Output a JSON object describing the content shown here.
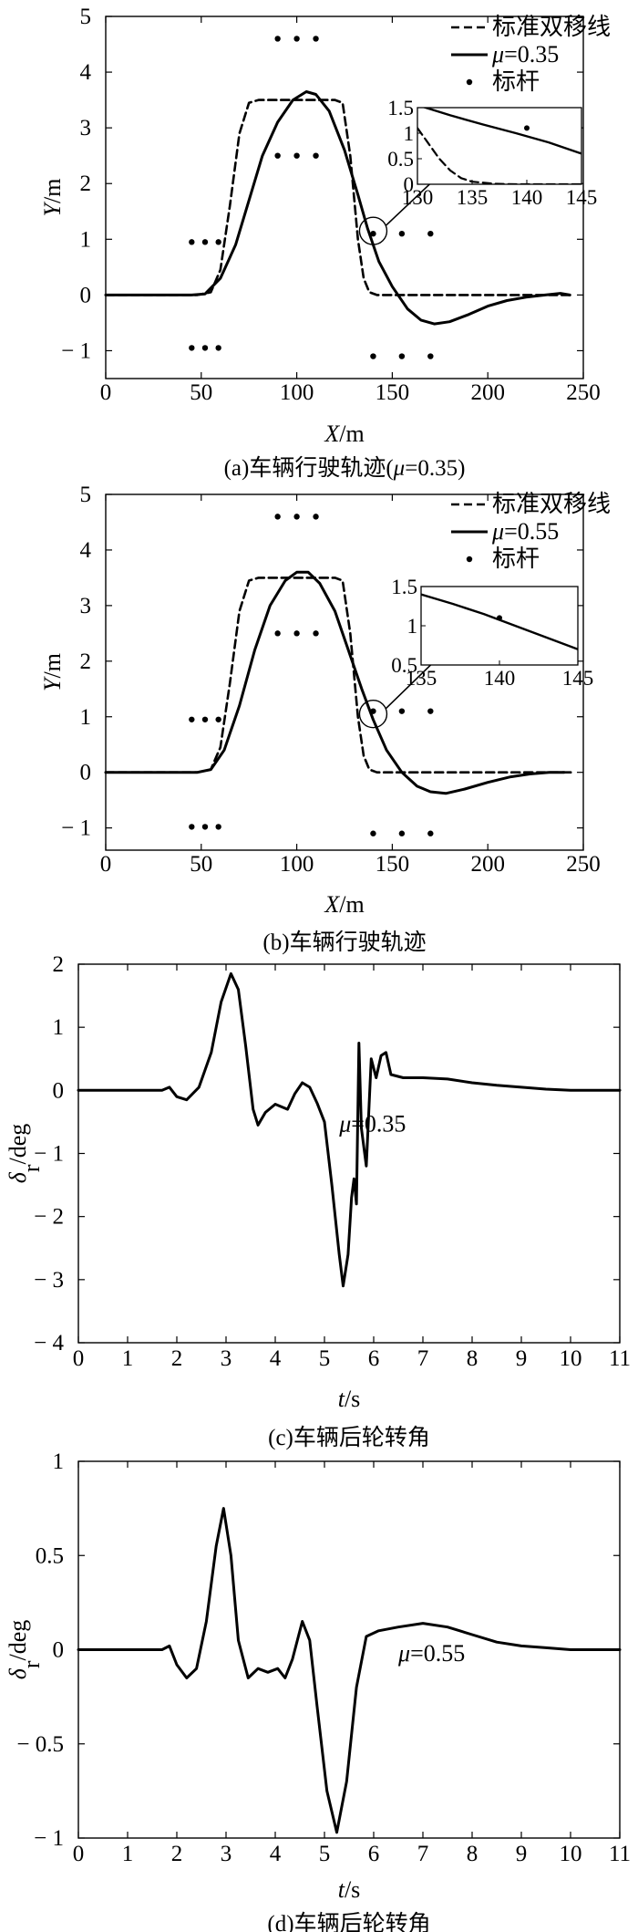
{
  "chart_data": [
    {
      "id": "a",
      "type": "line",
      "caption_prefix": "(a)车辆行驶轨迹(",
      "caption_mu": "μ",
      "caption_suffix": "=0.35)",
      "xlabel_var": "X",
      "xlabel_unit": "/m",
      "ylabel_var": "Y",
      "ylabel_unit": "/m",
      "xlim": [
        0,
        250
      ],
      "ylim": [
        -1.5,
        5
      ],
      "xticks": [
        0,
        50,
        100,
        150,
        200,
        250
      ],
      "yticks": [
        -1,
        0,
        1,
        2,
        3,
        4,
        5
      ],
      "ytick_labels": [
        "− 1",
        "0",
        "1",
        "2",
        "3",
        "4",
        "5"
      ],
      "legend": [
        {
          "label": "标准双移线",
          "style": "dashed"
        },
        {
          "label_var": "μ",
          "label_value": "=0.35",
          "style": "solid"
        },
        {
          "label": "标杆",
          "style": "marker"
        }
      ],
      "series": [
        {
          "style": "dashed",
          "points": [
            [
              0,
              0
            ],
            [
              48,
              0
            ],
            [
              55,
              0.05
            ],
            [
              60,
              0.45
            ],
            [
              65,
              1.6
            ],
            [
              70,
              2.9
            ],
            [
              75,
              3.45
            ],
            [
              80,
              3.5
            ],
            [
              120,
              3.5
            ],
            [
              124,
              3.45
            ],
            [
              128,
              2.5
            ],
            [
              132,
              1.0
            ],
            [
              135,
              0.3
            ],
            [
              138,
              0.05
            ],
            [
              142,
              0
            ],
            [
              245,
              0
            ]
          ]
        },
        {
          "style": "solid",
          "points": [
            [
              0,
              0
            ],
            [
              45,
              0
            ],
            [
              52,
              0.02
            ],
            [
              60,
              0.3
            ],
            [
              68,
              0.9
            ],
            [
              75,
              1.7
            ],
            [
              82,
              2.5
            ],
            [
              90,
              3.1
            ],
            [
              98,
              3.5
            ],
            [
              105,
              3.65
            ],
            [
              110,
              3.6
            ],
            [
              117,
              3.3
            ],
            [
              125,
              2.6
            ],
            [
              132,
              1.8
            ],
            [
              137,
              1.2
            ],
            [
              143,
              0.6
            ],
            [
              150,
              0.15
            ],
            [
              158,
              -0.25
            ],
            [
              165,
              -0.45
            ],
            [
              172,
              -0.52
            ],
            [
              180,
              -0.48
            ],
            [
              190,
              -0.35
            ],
            [
              200,
              -0.2
            ],
            [
              210,
              -0.1
            ],
            [
              220,
              -0.04
            ],
            [
              230,
              0.0
            ],
            [
              238,
              0.03
            ],
            [
              243,
              0
            ]
          ]
        }
      ],
      "markers": [
        [
          45,
          0.95
        ],
        [
          52,
          0.95
        ],
        [
          59,
          0.95
        ],
        [
          45,
          -0.95
        ],
        [
          52,
          -0.95
        ],
        [
          59,
          -0.95
        ],
        [
          90,
          2.5
        ],
        [
          100,
          2.5
        ],
        [
          110,
          2.5
        ],
        [
          90,
          4.6
        ],
        [
          100,
          4.6
        ],
        [
          110,
          4.6
        ],
        [
          140,
          1.1
        ],
        [
          155,
          1.1
        ],
        [
          170,
          1.1
        ],
        [
          140,
          -1.1
        ],
        [
          155,
          -1.1
        ],
        [
          170,
          -1.1
        ]
      ],
      "zoom_circle": [
        140,
        1.15
      ],
      "inset": {
        "xlim": [
          130,
          145
        ],
        "ylim": [
          0,
          1.5
        ],
        "xticks": [
          130,
          135,
          140,
          145
        ],
        "yticks": [
          0,
          0.5,
          1,
          1.5
        ],
        "ytick_labels": [
          "0",
          "0.5",
          "1",
          "1.5"
        ],
        "series": [
          {
            "style": "solid",
            "points": [
              [
                130,
                1.55
              ],
              [
                133,
                1.35
              ],
              [
                136,
                1.17
              ],
              [
                139,
                1.0
              ],
              [
                142,
                0.82
              ],
              [
                145,
                0.6
              ]
            ]
          },
          {
            "style": "dashed",
            "points": [
              [
                130,
                1.1
              ],
              [
                131,
                0.8
              ],
              [
                132,
                0.5
              ],
              [
                133,
                0.27
              ],
              [
                134,
                0.12
              ],
              [
                135,
                0.05
              ],
              [
                137,
                0.01
              ],
              [
                139,
                0
              ],
              [
                145,
                0
              ]
            ]
          }
        ],
        "markers": [
          [
            140,
            1.1
          ]
        ]
      }
    },
    {
      "id": "b",
      "type": "line",
      "caption_prefix": "(b)车辆行驶轨迹",
      "xlabel_var": "X",
      "xlabel_unit": "/m",
      "ylabel_var": "Y",
      "ylabel_unit": "/m",
      "xlim": [
        0,
        250
      ],
      "ylim": [
        -1.4,
        5
      ],
      "xticks": [
        0,
        50,
        100,
        150,
        200,
        250
      ],
      "yticks": [
        -1,
        0,
        1,
        2,
        3,
        4,
        5
      ],
      "ytick_labels": [
        "− 1",
        "0",
        "1",
        "2",
        "3",
        "4",
        "5"
      ],
      "legend": [
        {
          "label": "标准双移线",
          "style": "dashed"
        },
        {
          "label_var": "μ",
          "label_value": "=0.55",
          "style": "solid"
        },
        {
          "label": "标杆",
          "style": "marker"
        }
      ],
      "series": [
        {
          "style": "dashed",
          "points": [
            [
              0,
              0
            ],
            [
              48,
              0
            ],
            [
              55,
              0.05
            ],
            [
              60,
              0.45
            ],
            [
              65,
              1.6
            ],
            [
              70,
              2.9
            ],
            [
              75,
              3.45
            ],
            [
              80,
              3.5
            ],
            [
              120,
              3.5
            ],
            [
              124,
              3.45
            ],
            [
              128,
              2.5
            ],
            [
              132,
              1.0
            ],
            [
              135,
              0.3
            ],
            [
              138,
              0.05
            ],
            [
              142,
              0
            ],
            [
              245,
              0
            ]
          ]
        },
        {
          "style": "solid",
          "points": [
            [
              0,
              0
            ],
            [
              48,
              0
            ],
            [
              55,
              0.05
            ],
            [
              62,
              0.4
            ],
            [
              70,
              1.2
            ],
            [
              78,
              2.2
            ],
            [
              86,
              3.0
            ],
            [
              94,
              3.45
            ],
            [
              100,
              3.6
            ],
            [
              106,
              3.6
            ],
            [
              112,
              3.4
            ],
            [
              120,
              2.9
            ],
            [
              128,
              2.1
            ],
            [
              134,
              1.5
            ],
            [
              140,
              0.95
            ],
            [
              147,
              0.4
            ],
            [
              155,
              0.0
            ],
            [
              163,
              -0.25
            ],
            [
              170,
              -0.35
            ],
            [
              178,
              -0.38
            ],
            [
              188,
              -0.3
            ],
            [
              200,
              -0.18
            ],
            [
              212,
              -0.08
            ],
            [
              222,
              -0.03
            ],
            [
              232,
              0
            ],
            [
              240,
              0
            ]
          ]
        }
      ],
      "markers": [
        [
          45,
          0.95
        ],
        [
          52,
          0.95
        ],
        [
          59,
          0.95
        ],
        [
          45,
          -0.98
        ],
        [
          52,
          -0.98
        ],
        [
          59,
          -0.98
        ],
        [
          90,
          2.5
        ],
        [
          100,
          2.5
        ],
        [
          110,
          2.5
        ],
        [
          90,
          4.6
        ],
        [
          100,
          4.6
        ],
        [
          110,
          4.6
        ],
        [
          140,
          1.1
        ],
        [
          155,
          1.1
        ],
        [
          170,
          1.1
        ],
        [
          140,
          -1.1
        ],
        [
          155,
          -1.1
        ],
        [
          170,
          -1.1
        ]
      ],
      "zoom_circle": [
        140,
        1.05
      ],
      "inset": {
        "xlim": [
          135,
          145
        ],
        "ylim": [
          0.5,
          1.5
        ],
        "xticks": [
          135,
          140,
          145
        ],
        "yticks": [
          0.5,
          1,
          1.5
        ],
        "ytick_labels": [
          "0.5",
          "1",
          "1.5"
        ],
        "series": [
          {
            "style": "solid",
            "points": [
              [
                135,
                1.4
              ],
              [
                137,
                1.28
              ],
              [
                139,
                1.15
              ],
              [
                141,
                1.0
              ],
              [
                143,
                0.85
              ],
              [
                145,
                0.7
              ]
            ]
          }
        ],
        "markers": [
          [
            140,
            1.1
          ]
        ]
      }
    },
    {
      "id": "c",
      "type": "line",
      "caption_prefix": "(c)车辆后轮转角",
      "xlabel_var": "t",
      "xlabel_unit": "/s",
      "ylabel_var": "δ",
      "ylabel_sub": "r",
      "ylabel_unit": "/deg",
      "xlim": [
        0,
        11
      ],
      "ylim": [
        -4,
        2
      ],
      "xticks": [
        0,
        1,
        2,
        3,
        4,
        5,
        6,
        7,
        8,
        9,
        10,
        11
      ],
      "yticks": [
        -4,
        -3,
        -2,
        -1,
        0,
        1,
        2
      ],
      "ytick_labels": [
        "− 4",
        "− 3",
        "− 2",
        "− 1",
        "0",
        "1",
        "2"
      ],
      "annotation_var": "μ",
      "annotation_value": "=0.35",
      "annotation_at": [
        5.3,
        -0.65
      ],
      "series": [
        {
          "style": "solid",
          "points": [
            [
              0,
              0
            ],
            [
              1.7,
              0
            ],
            [
              1.85,
              0.05
            ],
            [
              2.0,
              -0.1
            ],
            [
              2.2,
              -0.15
            ],
            [
              2.45,
              0.05
            ],
            [
              2.7,
              0.6
            ],
            [
              2.9,
              1.4
            ],
            [
              3.1,
              1.85
            ],
            [
              3.25,
              1.6
            ],
            [
              3.4,
              0.7
            ],
            [
              3.55,
              -0.3
            ],
            [
              3.65,
              -0.55
            ],
            [
              3.8,
              -0.35
            ],
            [
              4.0,
              -0.22
            ],
            [
              4.25,
              -0.3
            ],
            [
              4.4,
              -0.05
            ],
            [
              4.55,
              0.12
            ],
            [
              4.7,
              0.05
            ],
            [
              4.85,
              -0.2
            ],
            [
              5.0,
              -0.5
            ],
            [
              5.15,
              -1.5
            ],
            [
              5.3,
              -2.6
            ],
            [
              5.38,
              -3.1
            ],
            [
              5.48,
              -2.6
            ],
            [
              5.55,
              -1.7
            ],
            [
              5.6,
              -1.4
            ],
            [
              5.65,
              -1.8
            ],
            [
              5.7,
              0.75
            ],
            [
              5.75,
              -0.6
            ],
            [
              5.85,
              -1.2
            ],
            [
              5.95,
              0.5
            ],
            [
              6.05,
              0.2
            ],
            [
              6.15,
              0.55
            ],
            [
              6.25,
              0.6
            ],
            [
              6.35,
              0.25
            ],
            [
              6.6,
              0.2
            ],
            [
              7.0,
              0.2
            ],
            [
              7.5,
              0.18
            ],
            [
              8.0,
              0.12
            ],
            [
              8.5,
              0.08
            ],
            [
              9.0,
              0.05
            ],
            [
              9.5,
              0.02
            ],
            [
              10.0,
              0
            ],
            [
              11.0,
              0
            ]
          ]
        }
      ]
    },
    {
      "id": "d",
      "type": "line",
      "caption_prefix": "(d)车辆后轮转角",
      "xlabel_var": "t",
      "xlabel_unit": "/s",
      "ylabel_var": "δ",
      "ylabel_sub": "r",
      "ylabel_unit": "/deg",
      "xlim": [
        0,
        11
      ],
      "ylim": [
        -1,
        1
      ],
      "xticks": [
        0,
        1,
        2,
        3,
        4,
        5,
        6,
        7,
        8,
        9,
        10,
        11
      ],
      "yticks": [
        -1,
        -0.5,
        0,
        0.5,
        1
      ],
      "ytick_labels": [
        "− 1",
        "− 0.5",
        "0",
        "0.5",
        "1"
      ],
      "annotation_var": "μ",
      "annotation_value": "=0.55",
      "annotation_at": [
        6.5,
        -0.06
      ],
      "series": [
        {
          "style": "solid",
          "points": [
            [
              0,
              0
            ],
            [
              1.7,
              0
            ],
            [
              1.85,
              0.02
            ],
            [
              2.0,
              -0.08
            ],
            [
              2.2,
              -0.15
            ],
            [
              2.4,
              -0.1
            ],
            [
              2.6,
              0.15
            ],
            [
              2.8,
              0.55
            ],
            [
              2.95,
              0.75
            ],
            [
              3.1,
              0.5
            ],
            [
              3.25,
              0.05
            ],
            [
              3.45,
              -0.15
            ],
            [
              3.65,
              -0.1
            ],
            [
              3.85,
              -0.12
            ],
            [
              4.05,
              -0.1
            ],
            [
              4.2,
              -0.15
            ],
            [
              4.35,
              -0.05
            ],
            [
              4.55,
              0.15
            ],
            [
              4.7,
              0.05
            ],
            [
              4.85,
              -0.3
            ],
            [
              5.05,
              -0.75
            ],
            [
              5.25,
              -0.97
            ],
            [
              5.45,
              -0.7
            ],
            [
              5.65,
              -0.2
            ],
            [
              5.85,
              0.07
            ],
            [
              6.1,
              0.1
            ],
            [
              6.5,
              0.12
            ],
            [
              7.0,
              0.14
            ],
            [
              7.5,
              0.12
            ],
            [
              8.0,
              0.08
            ],
            [
              8.5,
              0.04
            ],
            [
              9.0,
              0.02
            ],
            [
              9.5,
              0.01
            ],
            [
              10.0,
              0
            ],
            [
              11.0,
              0
            ]
          ]
        }
      ]
    }
  ]
}
